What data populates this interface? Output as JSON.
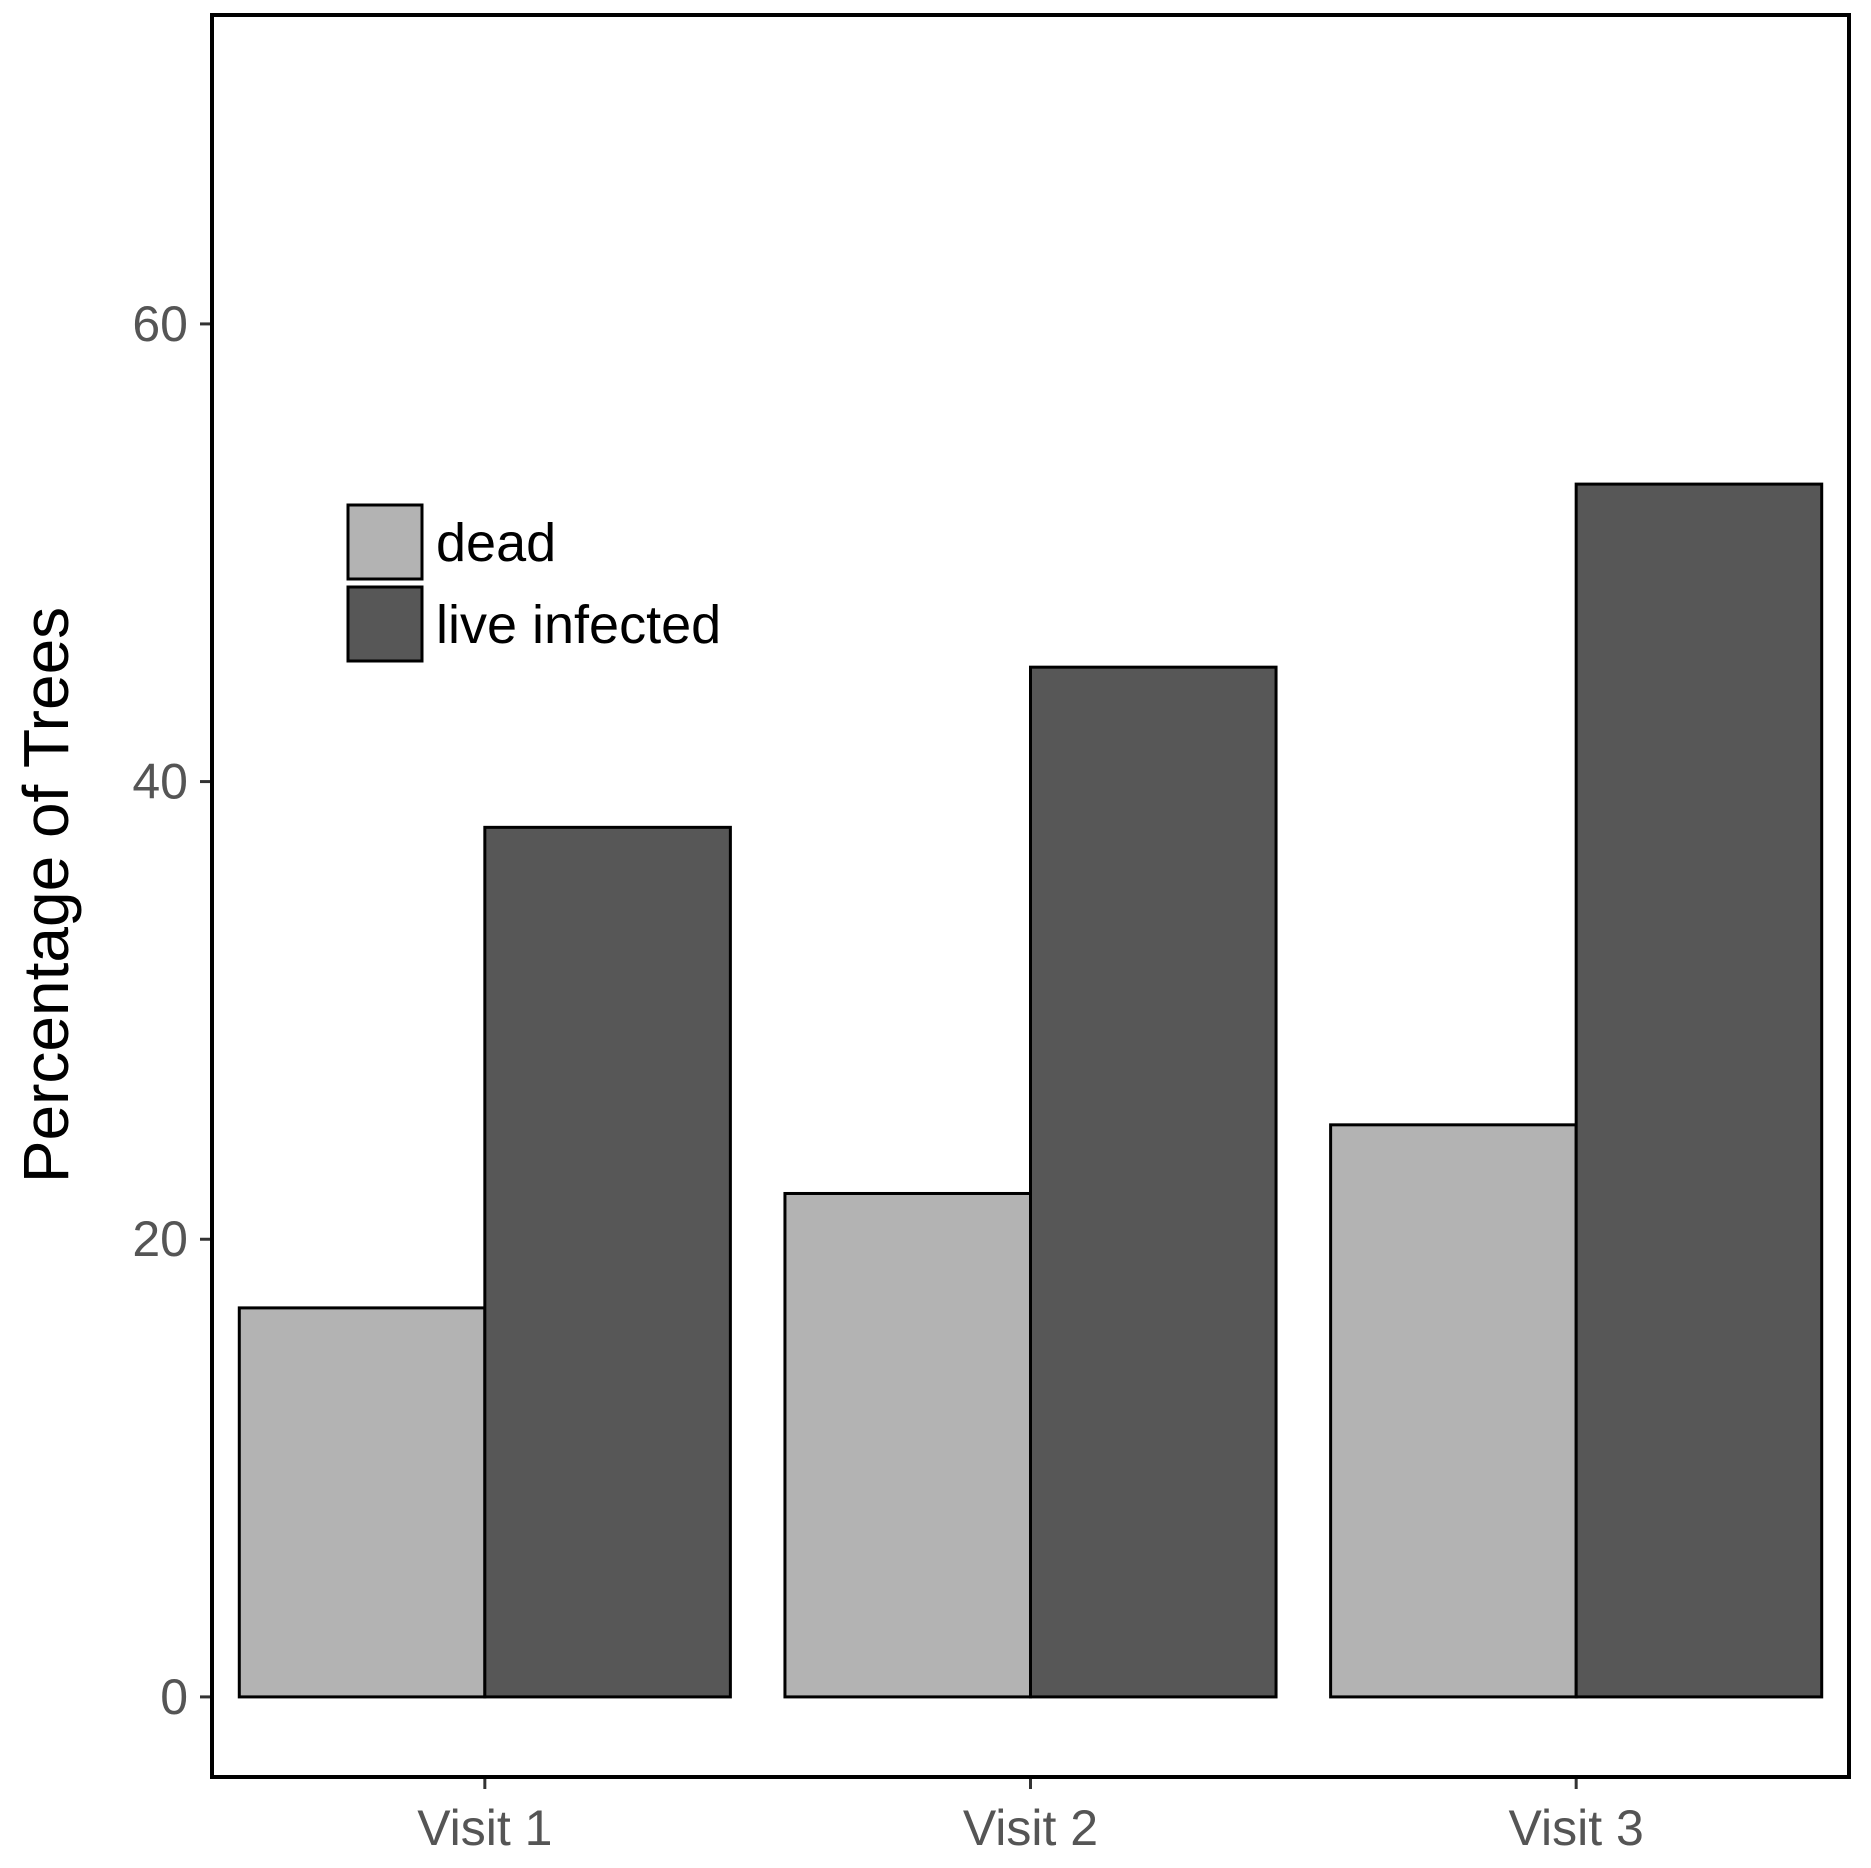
{
  "chart_data": {
    "type": "bar",
    "title": "",
    "xlabel": "",
    "ylabel": "Percentage of Trees",
    "categories": [
      "Visit 1",
      "Visit 2",
      "Visit 3"
    ],
    "series": [
      {
        "name": "dead",
        "values": [
          17,
          22,
          25
        ],
        "color": "#b3b3b3"
      },
      {
        "name": "live infected",
        "values": [
          38,
          45,
          53
        ],
        "color": "#575757"
      }
    ],
    "ylim": [
      -3.5,
      73.5
    ],
    "yticks": [
      0,
      20,
      40,
      60
    ],
    "ytick_labels": [
      "0",
      "20",
      "40",
      "60"
    ],
    "grid": false,
    "legend_position": "top-left"
  }
}
